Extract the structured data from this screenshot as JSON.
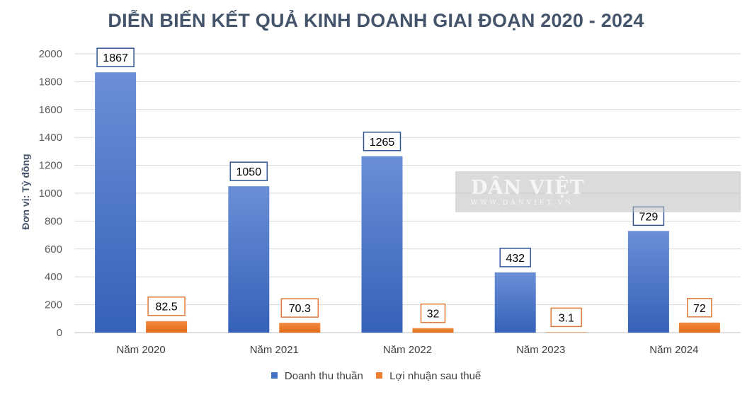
{
  "chart_data": {
    "type": "bar",
    "title": "DIỄN BIẾN KẾT QUẢ KINH DOANH GIAI ĐOẠN 2020 - 2024",
    "ylabel": "Đơn vị: Tỷ đồng",
    "xlabel": "",
    "categories": [
      "Năm 2020",
      "Năm 2021",
      "Năm 2022",
      "Năm 2023",
      "Năm 2024"
    ],
    "ylim": [
      0,
      2000
    ],
    "yticks": [
      "0",
      "200",
      "400",
      "600",
      "800",
      "1000",
      "1200",
      "1400",
      "1600",
      "1800",
      "2000"
    ],
    "grid": true,
    "legend_position": "bottom",
    "series": [
      {
        "name": "Doanh thu thuần",
        "values": [
          1867,
          1050,
          1265,
          432,
          729
        ],
        "labels": [
          "1867",
          "1050",
          "1265",
          "432",
          "729"
        ],
        "color": "#4472c4"
      },
      {
        "name": "Lợi nhuận sau thuế",
        "values": [
          82.5,
          70.3,
          32,
          3.1,
          72
        ],
        "labels": [
          "82.5",
          "70.3",
          "32",
          "3.1",
          "72"
        ],
        "color": "#ed7d31"
      }
    ]
  },
  "watermark": {
    "logo": "DÂN VIỆT",
    "url": "WWW.DANVIET.VN"
  }
}
